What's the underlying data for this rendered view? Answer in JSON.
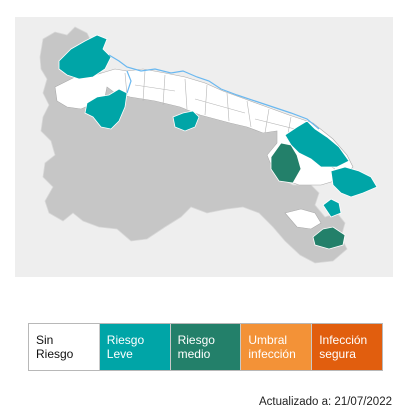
{
  "legend": [
    {
      "label": "Sin\nRiesgo",
      "color": "#ffffff",
      "text_color": "#111111"
    },
    {
      "label": "Riesgo\nLeve",
      "color": "#00a5a7",
      "text_color": "#ffffff"
    },
    {
      "label": "Riesgo\nmedio",
      "color": "#23806a",
      "text_color": "#ffffff"
    },
    {
      "label": "Umbral\ninfección",
      "color": "#f39237",
      "text_color": "#ffffff"
    },
    {
      "label": "Infección\nsegura",
      "color": "#e15e0e",
      "text_color": "#ffffff"
    }
  ],
  "updated_text": "Actualizado a: 21/07/2022",
  "map_colors": {
    "background": "#eeeeee",
    "no_data": "#c6c6c6",
    "river": "#6ab8f0",
    "border": "#999999"
  }
}
